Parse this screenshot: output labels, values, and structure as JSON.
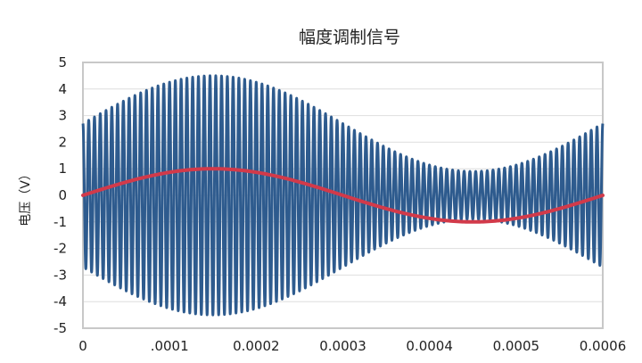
{
  "chart_data": {
    "type": "line",
    "title": "幅度调制信号",
    "xlabel": "",
    "ylabel": "电压（V）",
    "xlim": [
      0,
      0.0006
    ],
    "ylim": [
      -5,
      5
    ],
    "grid": true,
    "legend": "none",
    "x_tick_labels": [
      "0",
      ".0001",
      "0.0002",
      "0.0003",
      "0.0004",
      "0.0005",
      "0.0006"
    ],
    "y_tick_labels": [
      "5",
      "4",
      "3",
      "2",
      "1",
      "0",
      "-1",
      "-2",
      "-3",
      "-4",
      "-5"
    ],
    "colors": {
      "modulated": "#2e5b8e",
      "message": "#d23a4a",
      "frame": "#c8c8c8",
      "grid": "#dedede"
    },
    "series": [
      {
        "role": "modulated",
        "description_values": "carrier sine, amplitude = 2.7 + 1.8*message",
        "carrier_amplitude": 2.7,
        "modulation_depth": 1.8,
        "carrier_frequency": 150000,
        "x": [
          0,
          5e-05,
          0.0001,
          0.00015,
          0.0002,
          0.00025,
          0.0003,
          0.00035,
          0.0004,
          0.00045,
          0.0005,
          0.00055,
          0.0006
        ],
        "envelope_upper": [
          2.7,
          3.6,
          4.26,
          4.5,
          4.26,
          3.6,
          2.7,
          1.8,
          1.14,
          0.9,
          1.14,
          1.8,
          2.7
        ]
      },
      {
        "role": "message",
        "x": [
          0,
          5e-05,
          0.0001,
          0.00015,
          0.0002,
          0.00025,
          0.0003,
          0.00035,
          0.0004,
          0.00045,
          0.0005,
          0.00055,
          0.0006
        ],
        "values": [
          0,
          0.5,
          0.87,
          1.0,
          0.87,
          0.5,
          0,
          -0.5,
          -0.87,
          -1.0,
          -0.87,
          -0.5,
          0
        ]
      }
    ]
  }
}
